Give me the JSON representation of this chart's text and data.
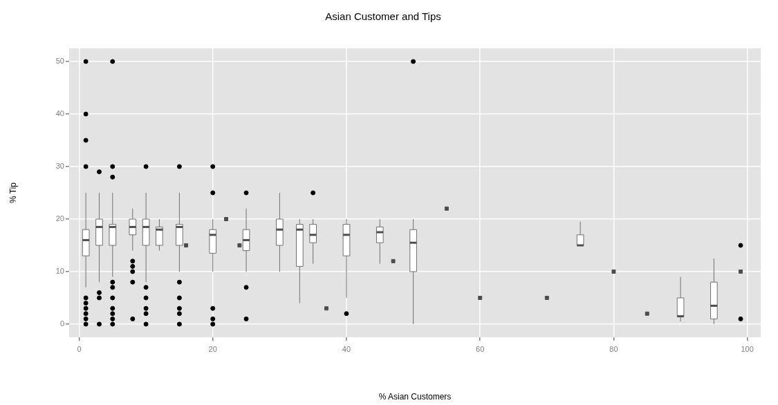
{
  "chart_data": {
    "type": "box",
    "title": "Asian Customer and Tips",
    "xlabel": "% Asian Customers",
    "ylabel": "% Tip",
    "x": [
      1,
      3,
      5,
      8,
      10,
      12,
      15,
      20,
      25,
      30,
      33,
      35,
      40,
      45,
      50,
      75,
      90,
      95
    ],
    "boxes": [
      {
        "low": 7,
        "q1": 13,
        "median": 16,
        "q3": 18,
        "high": 25,
        "outliers": [
          50,
          40,
          35,
          30,
          5,
          4,
          3,
          2,
          1,
          0
        ]
      },
      {
        "low": 8,
        "q1": 15,
        "median": 18.5,
        "q3": 20,
        "high": 25,
        "outliers": [
          29,
          6,
          5,
          0
        ]
      },
      {
        "low": 9,
        "q1": 15,
        "median": 18.5,
        "q3": 19,
        "high": 25,
        "outliers": [
          50,
          30,
          28,
          8,
          7,
          5,
          3,
          2,
          1,
          0
        ]
      },
      {
        "low": 14,
        "q1": 17,
        "median": 18.5,
        "q3": 20,
        "high": 22,
        "outliers": [
          12,
          11,
          10,
          8,
          1
        ]
      },
      {
        "low": 8,
        "q1": 15,
        "median": 18.5,
        "q3": 20,
        "high": 25,
        "outliers": [
          30,
          7,
          5,
          3,
          2,
          0
        ]
      },
      {
        "low": 14,
        "q1": 15,
        "median": 18,
        "q3": 18.5,
        "high": 20
      },
      {
        "low": 10,
        "q1": 15,
        "median": 18.5,
        "q3": 19,
        "high": 25,
        "outliers": [
          30,
          8,
          5,
          3,
          2,
          0
        ]
      },
      {
        "low": 10,
        "q1": 13.5,
        "median": 17,
        "q3": 18,
        "high": 20,
        "outliers": [
          30,
          25,
          3,
          1,
          0
        ]
      },
      {
        "low": 10,
        "q1": 14,
        "median": 16,
        "q3": 18,
        "high": 22,
        "outliers": [
          25,
          7,
          1
        ]
      },
      {
        "low": 10,
        "q1": 15,
        "median": 18,
        "q3": 20,
        "high": 25
      },
      {
        "low": 4,
        "q1": 11,
        "median": 18,
        "q3": 19,
        "high": 20
      },
      {
        "low": 11.5,
        "q1": 15.5,
        "median": 17,
        "q3": 19,
        "high": 20,
        "outliers": [
          25
        ]
      },
      {
        "low": 5,
        "q1": 13,
        "median": 17,
        "q3": 19,
        "high": 20,
        "outliers": [
          2
        ]
      },
      {
        "low": 11.5,
        "q1": 15.5,
        "median": 17.5,
        "q3": 18.5,
        "high": 20
      },
      {
        "low": 0,
        "q1": 10,
        "median": 15.5,
        "q3": 18,
        "high": 20,
        "outliers": [
          50
        ]
      },
      {
        "low": 15,
        "q1": 15,
        "median": 15,
        "q3": 17,
        "high": 19.5
      },
      {
        "low": 0.5,
        "q1": 1.5,
        "median": 1.5,
        "q3": 5,
        "high": 9
      },
      {
        "low": 0,
        "q1": 1,
        "median": 3.5,
        "q3": 8,
        "high": 12.5
      }
    ],
    "series": [
      {
        "type": "scatter",
        "marker": "square",
        "color": "#4d4d4d",
        "x": [
          16,
          22,
          24,
          37,
          47,
          55,
          60,
          70,
          80,
          85,
          99
        ],
        "values": [
          15,
          20,
          15,
          3,
          12,
          22,
          5,
          5,
          10,
          2,
          10
        ]
      },
      {
        "type": "scatter",
        "marker": "circle",
        "color": "#000000",
        "x": [
          99,
          99
        ],
        "values": [
          15,
          1
        ]
      }
    ],
    "color": "#ffffff",
    "marker": "circle",
    "grid": true,
    "xlim": [
      -1.5,
      102
    ],
    "xticks": [
      0,
      20,
      40,
      60,
      80,
      100
    ],
    "ylim": [
      -2.5,
      52.5
    ],
    "yticks": [
      0,
      10,
      20,
      30,
      40,
      50
    ]
  }
}
